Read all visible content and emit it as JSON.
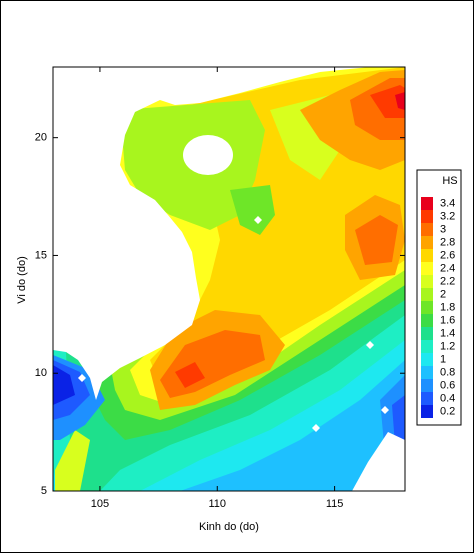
{
  "chart_data": {
    "type": "contour",
    "x_label": "Kinh do (do)",
    "y_label": "Vi do (do)",
    "xlim": [
      103,
      118
    ],
    "ylim": [
      5,
      23
    ],
    "xticks": [
      105,
      110,
      115
    ],
    "yticks": [
      5,
      10,
      15,
      20
    ],
    "colorbar": {
      "title": "HS",
      "levels": [
        3.4,
        3.2,
        3,
        2.8,
        2.6,
        2.4,
        2.2,
        2,
        1.8,
        1.6,
        1.4,
        1.2,
        1,
        0.8,
        0.6,
        0.4,
        0.2
      ],
      "colors": [
        "#e8001c",
        "#ff3a00",
        "#ff6e00",
        "#ffa400",
        "#ffd800",
        "#ffff1e",
        "#d8ff1e",
        "#a8f51e",
        "#6ee628",
        "#3cdc46",
        "#1ee08c",
        "#1eeec4",
        "#1ee8f0",
        "#1ec0ff",
        "#1e90ff",
        "#1e5aff",
        "#0a22e6"
      ]
    }
  }
}
